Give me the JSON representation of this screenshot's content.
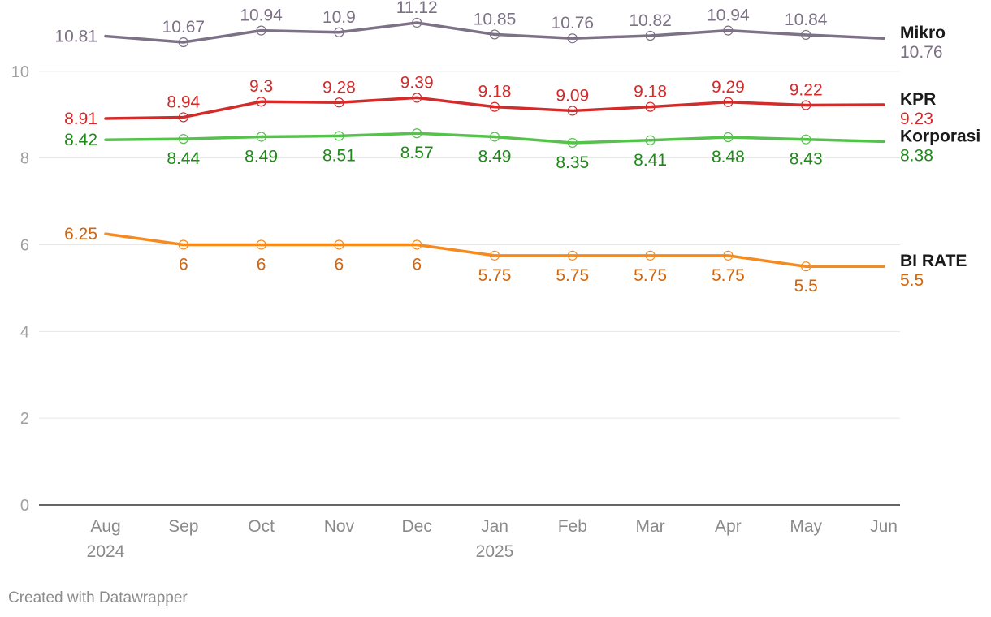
{
  "chart_data": {
    "type": "line",
    "categories": [
      "Aug 2024",
      "Sep",
      "Oct",
      "Nov",
      "Dec",
      "Jan 2025",
      "Feb",
      "Mar",
      "Apr",
      "May",
      "Jun"
    ],
    "tick_labels": [
      [
        "Aug",
        "2024"
      ],
      [
        "Sep"
      ],
      [
        "Oct"
      ],
      [
        "Nov"
      ],
      [
        "Dec"
      ],
      [
        "Jan",
        "2025"
      ],
      [
        "Feb"
      ],
      [
        "Mar"
      ],
      [
        "Apr"
      ],
      [
        "May"
      ],
      [
        "Jun"
      ]
    ],
    "yticks": [
      0,
      2,
      4,
      6,
      8,
      10
    ],
    "ylim": [
      0,
      11.5
    ],
    "grid": true,
    "series": [
      {
        "name": "Mikro",
        "color": "#7c7185",
        "label_color": "#7c7185",
        "values": [
          10.81,
          10.67,
          10.94,
          10.9,
          11.12,
          10.85,
          10.76,
          10.82,
          10.94,
          10.84,
          10.76
        ],
        "labels": [
          "10.81",
          "10.67",
          "10.94",
          "10.9",
          "11.12",
          "10.85",
          "10.76",
          "10.82",
          "10.94",
          "10.84",
          "10.76"
        ],
        "label_pos": [
          "left",
          "above",
          "above",
          "above",
          "above",
          "above",
          "above",
          "above",
          "above",
          "above",
          "end"
        ]
      },
      {
        "name": "KPR",
        "color": "#d32a2a",
        "label_color": "#d32a2a",
        "values": [
          8.91,
          8.94,
          9.3,
          9.28,
          9.39,
          9.18,
          9.09,
          9.18,
          9.29,
          9.22,
          9.23
        ],
        "labels": [
          "8.91",
          "8.94",
          "9.3",
          "9.28",
          "9.39",
          "9.18",
          "9.09",
          "9.18",
          "9.29",
          "9.22",
          "9.23"
        ],
        "label_pos": [
          "left",
          "above",
          "above",
          "above",
          "above",
          "above",
          "above",
          "above",
          "above",
          "above",
          "end"
        ]
      },
      {
        "name": "Korporasi",
        "color": "#54c24b",
        "label_color": "#1f8a1a",
        "values": [
          8.42,
          8.44,
          8.49,
          8.51,
          8.57,
          8.49,
          8.35,
          8.41,
          8.48,
          8.43,
          8.38
        ],
        "labels": [
          "8.42",
          "8.44",
          "8.49",
          "8.51",
          "8.57",
          "8.49",
          "8.35",
          "8.41",
          "8.48",
          "8.43",
          "8.38"
        ],
        "label_pos": [
          "left",
          "below",
          "below",
          "below",
          "below",
          "below",
          "below",
          "below",
          "below",
          "below",
          "end"
        ]
      },
      {
        "name": "BI RATE",
        "color": "#f58a1f",
        "label_color": "#d0650f",
        "values": [
          6.25,
          6,
          6,
          6,
          6,
          5.75,
          5.75,
          5.75,
          5.75,
          5.5,
          5.5
        ],
        "labels": [
          "6.25",
          "6",
          "6",
          "6",
          "6",
          "5.75",
          "5.75",
          "5.75",
          "5.75",
          "5.5",
          "5.5"
        ],
        "label_pos": [
          "left",
          "below",
          "below",
          "below",
          "below",
          "below",
          "below",
          "below",
          "below",
          "below",
          "end"
        ]
      }
    ]
  },
  "footer": {
    "credit": "Created with Datawrapper"
  }
}
